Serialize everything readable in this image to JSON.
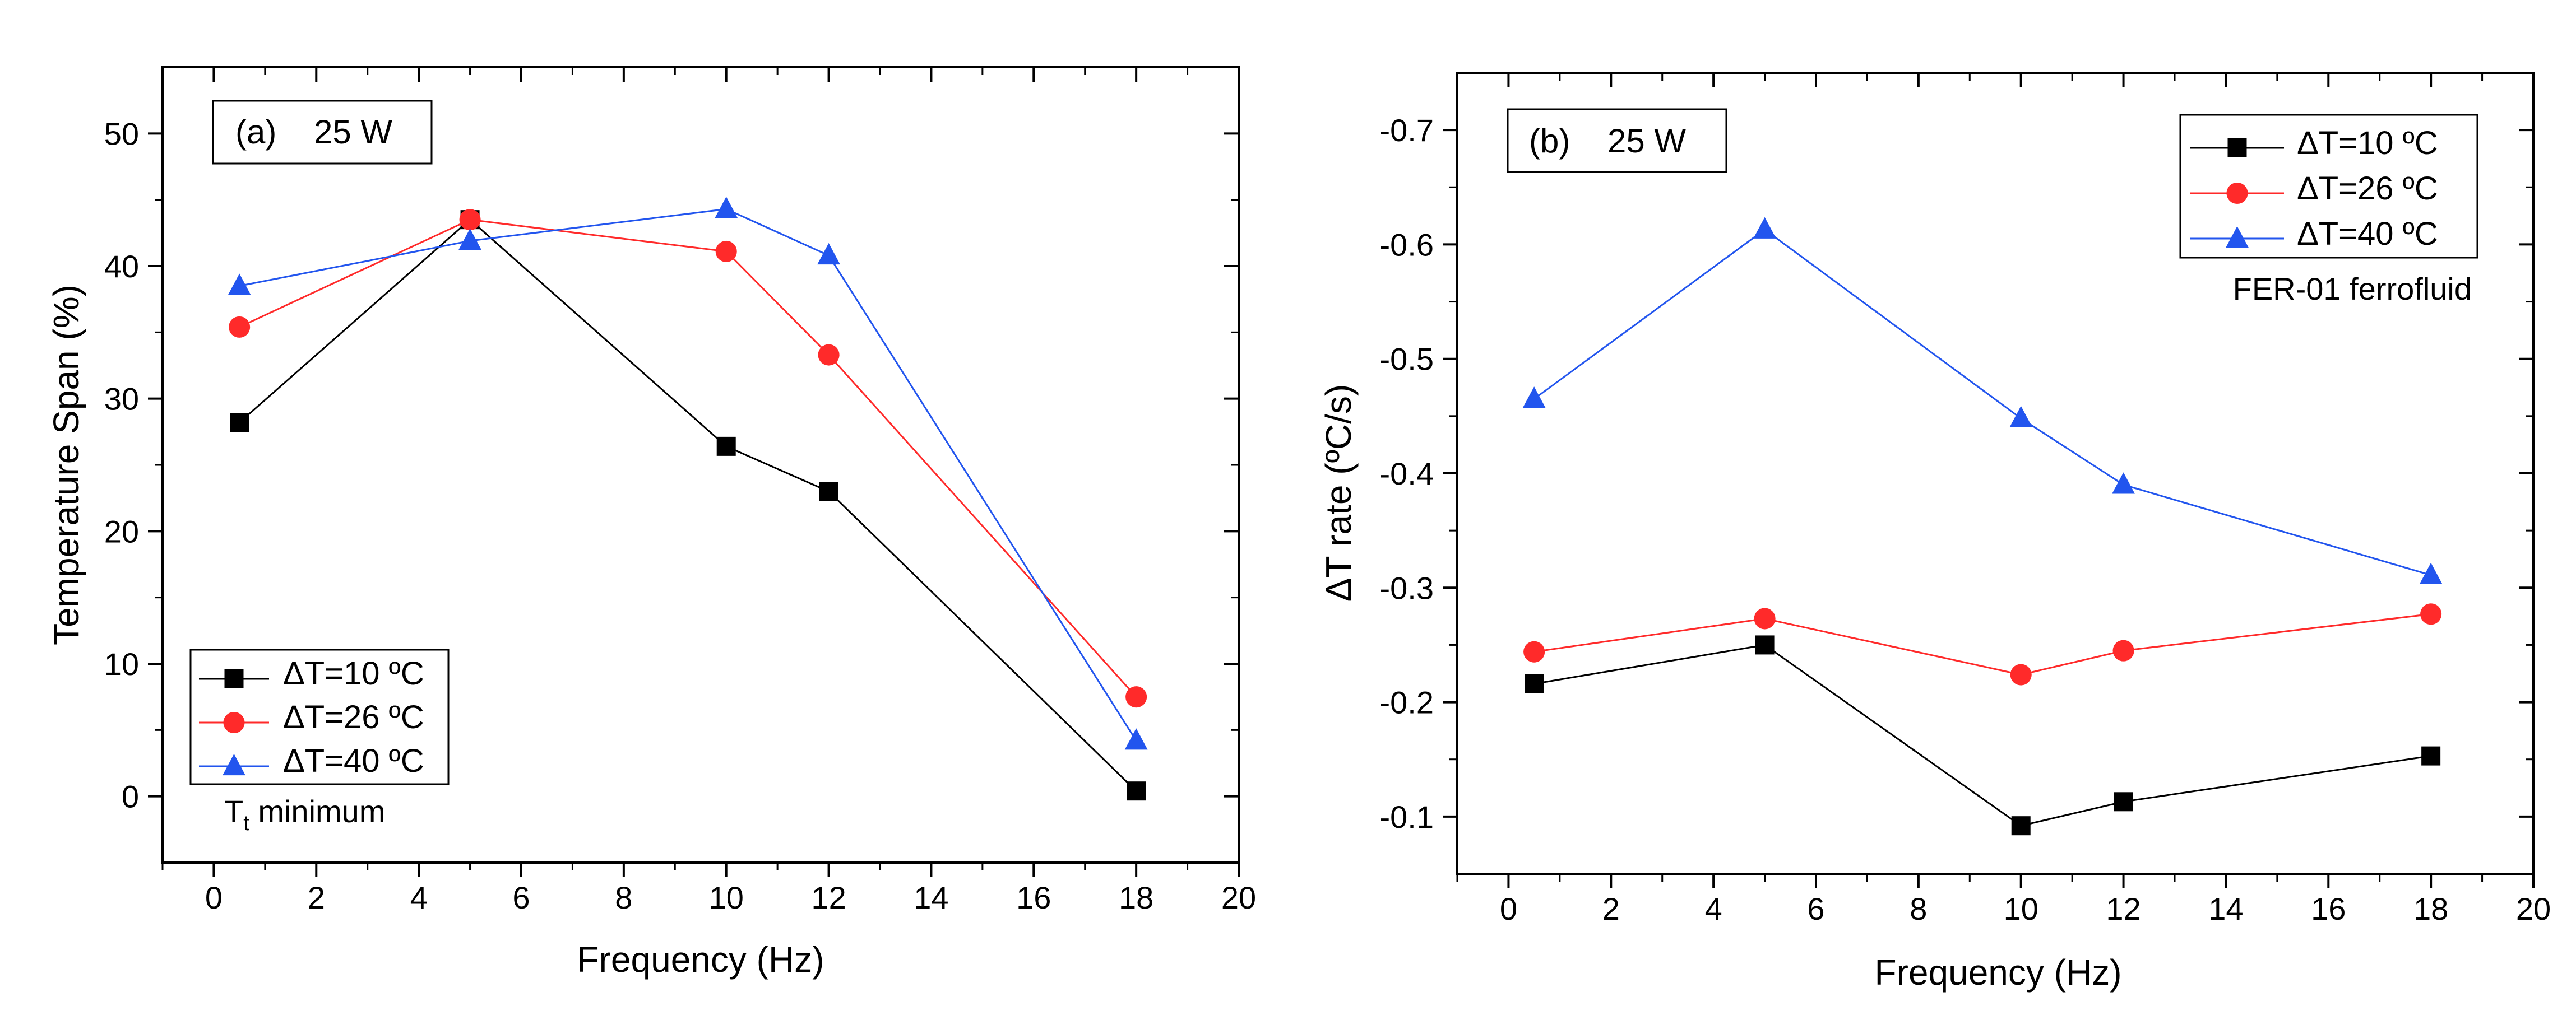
{
  "colors": {
    "series_1": "#000000",
    "series_2": "#ff2a2a",
    "series_3": "#2255ee",
    "axis": "#000000",
    "background": "#ffffff"
  },
  "chart_data": [
    {
      "type": "line",
      "panel_label": "(a)    25 W",
      "xlabel": "Frequency (Hz)",
      "ylabel": "Temperature Span (%)",
      "xlim": [
        -1,
        20
      ],
      "ylim": [
        -5,
        55
      ],
      "x_ticks": [
        0,
        2,
        4,
        6,
        8,
        10,
        12,
        14,
        16,
        18,
        20
      ],
      "y_ticks": [
        0,
        10,
        20,
        30,
        40,
        50
      ],
      "x_tick_labels": [
        "0",
        "2",
        "4",
        "6",
        "8",
        "10",
        "12",
        "14",
        "16",
        "18",
        "20"
      ],
      "y_tick_labels": [
        "0",
        "10",
        "20",
        "30",
        "40",
        "50"
      ],
      "x": [
        0.5,
        5,
        10,
        12,
        18
      ],
      "legend_position": "bottom-left",
      "annotation": {
        "main": "T",
        "sub": "t",
        "rest": " minimum"
      },
      "series": [
        {
          "name": "ΔT=10 ºC",
          "marker": "square",
          "color": "#000000",
          "values": [
            28.2,
            43.5,
            26.4,
            23.0,
            0.4
          ]
        },
        {
          "name": "ΔT=26 ºC",
          "marker": "circle",
          "color": "#ff2a2a",
          "values": [
            35.4,
            43.5,
            41.1,
            33.3,
            7.5
          ]
        },
        {
          "name": "ΔT=40 ºC",
          "marker": "triangle",
          "color": "#2255ee",
          "values": [
            38.5,
            41.9,
            44.3,
            40.8,
            4.2
          ]
        }
      ]
    },
    {
      "type": "line",
      "panel_label": "(b)    25 W",
      "xlabel": "Frequency (Hz)",
      "ylabel": "ΔT rate (ºC/s)",
      "xlim": [
        -1,
        20
      ],
      "ylim": [
        -0.05,
        -0.75
      ],
      "x_ticks": [
        0,
        2,
        4,
        6,
        8,
        10,
        12,
        14,
        16,
        18,
        20
      ],
      "y_ticks": [
        -0.1,
        -0.2,
        -0.3,
        -0.4,
        -0.5,
        -0.6,
        -0.7
      ],
      "x_tick_labels": [
        "0",
        "2",
        "4",
        "6",
        "8",
        "10",
        "12",
        "14",
        "16",
        "18",
        "20"
      ],
      "y_tick_labels": [
        "-0.1",
        "-0.2",
        "-0.3",
        "-0.4",
        "-0.5",
        "-0.6",
        "-0.7"
      ],
      "x": [
        0.5,
        5,
        10,
        12,
        18
      ],
      "legend_position": "top-right",
      "annotation": "FER-01 ferrofluid",
      "series": [
        {
          "name": "ΔT=10 ºC",
          "marker": "square",
          "color": "#000000",
          "values": [
            -0.216,
            -0.25,
            -0.092,
            -0.113,
            -0.153
          ]
        },
        {
          "name": "ΔT=26 ºC",
          "marker": "circle",
          "color": "#ff2a2a",
          "values": [
            -0.244,
            -0.273,
            -0.224,
            -0.245,
            -0.277
          ]
        },
        {
          "name": "ΔT=40 ºC",
          "marker": "triangle",
          "color": "#2255ee",
          "values": [
            -0.465,
            -0.613,
            -0.448,
            -0.39,
            -0.311
          ]
        }
      ]
    }
  ]
}
